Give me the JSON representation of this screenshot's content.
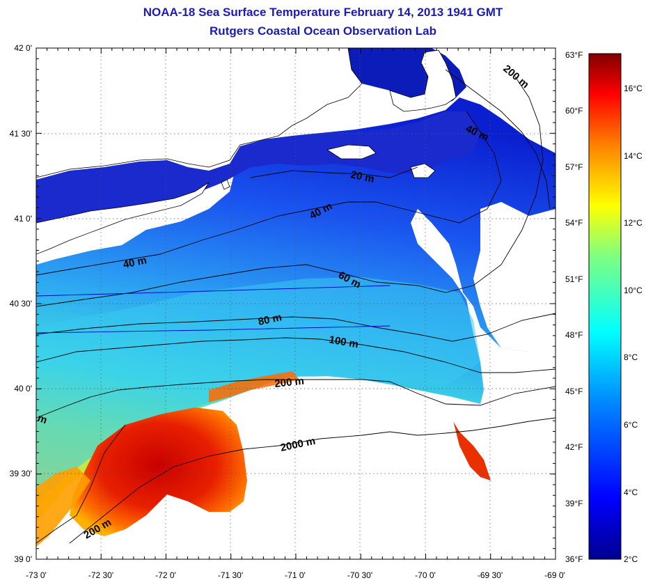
{
  "title": "NOAA-18 Sea Surface Temperature February 14, 2013 1941 GMT",
  "subtitle": "Rutgers Coastal Ocean Observation Lab",
  "lat_ticks": [
    "42 0'",
    "41 30'",
    "41 0'",
    "40 30'",
    "40 0'",
    "39 30'",
    "39 0'"
  ],
  "lon_ticks": [
    "-73 0'",
    "-72 30'",
    "-72 0'",
    "-71 30'",
    "-71 0'",
    "-70 30'",
    "-70 0'",
    "-69 30'",
    "-69 0'"
  ],
  "fahrenheit_ticks": [
    "63°F",
    "60°F",
    "57°F",
    "54°F",
    "51°F",
    "48°F",
    "45°F",
    "42°F",
    "39°F",
    "36°F"
  ],
  "celsius_ticks": [
    "16°C",
    "14°C",
    "12°C",
    "10°C",
    "8°C",
    "6°C",
    "4°C",
    "2°C"
  ],
  "contour_labels": {
    "c200_ne": "200 m",
    "c40_ne": "40 m",
    "c20": "20 m",
    "c40_mid": "40 m",
    "c40_w": "40 m",
    "c60": "60 m",
    "c80": "80 m",
    "c100": "100 m",
    "c200_mid": "200 m",
    "c2000": "2000 m",
    "c200_sw": "200 m",
    "cm_edge": "m"
  },
  "colors": {
    "title": "#1a1ab4",
    "land": "#ffffff",
    "cold": "#00008f",
    "warm": "#800000"
  }
}
